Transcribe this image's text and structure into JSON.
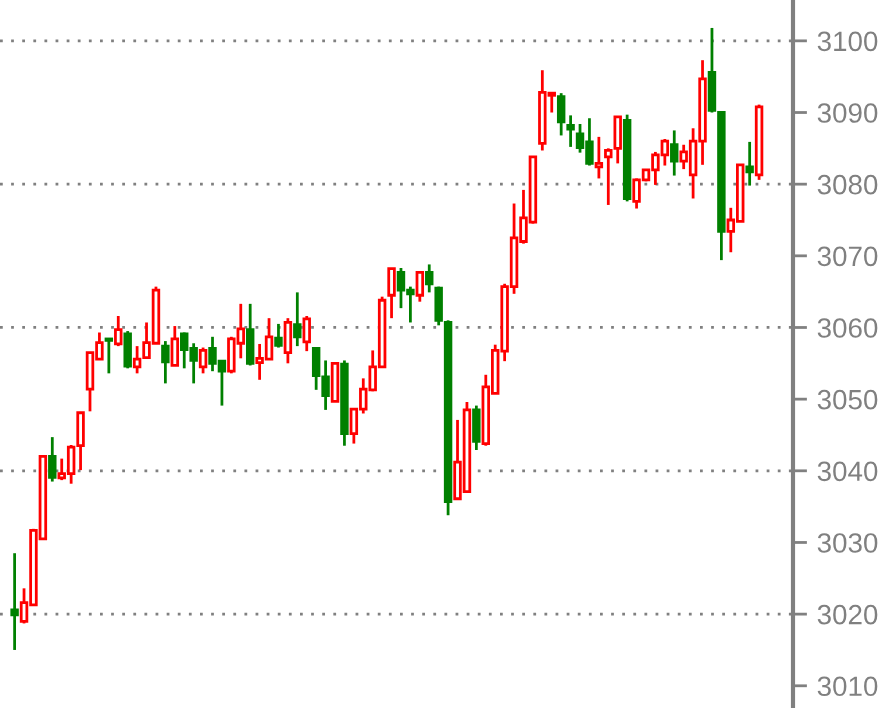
{
  "chart_data": {
    "type": "candlestick",
    "categories": [
      null,
      null,
      null,
      null,
      null,
      null,
      null,
      null,
      null,
      null,
      null,
      null,
      null,
      null,
      null,
      null,
      null,
      null,
      null,
      null,
      null,
      null,
      null,
      null,
      null,
      null,
      null,
      null,
      null,
      null,
      null,
      null,
      null,
      null,
      null,
      null,
      null,
      null,
      null,
      null,
      null,
      null,
      null,
      null,
      null,
      null,
      null,
      null,
      null,
      null,
      null,
      null,
      null,
      null,
      null,
      null,
      null,
      null,
      null,
      null,
      null,
      null,
      null,
      null,
      null,
      null,
      null,
      null,
      null,
      null,
      null,
      null,
      null,
      null,
      null,
      null,
      null,
      null,
      null,
      null
    ],
    "ohlc": [
      [
        3020.6,
        3028.5,
        3015.0,
        3019.9
      ],
      [
        3019.0,
        3023.6,
        3018.7,
        3021.6
      ],
      [
        3021.3,
        3031.9,
        3021.3,
        3031.7
      ],
      [
        3030.5,
        3042.0,
        3030.5,
        3042.0
      ],
      [
        3042.0,
        3044.7,
        3038.5,
        3039.1
      ],
      [
        3039.0,
        3041.7,
        3038.7,
        3039.6
      ],
      [
        3039.6,
        3043.6,
        3038.2,
        3043.3
      ],
      [
        3043.5,
        3048.1,
        3040.1,
        3048.1
      ],
      [
        3051.4,
        3056.5,
        3048.3,
        3056.5
      ],
      [
        3055.6,
        3059.3,
        3055.6,
        3057.9
      ],
      [
        3058.4,
        3058.4,
        3053.6,
        3058.2
      ],
      [
        3057.7,
        3061.6,
        3057.4,
        3059.7
      ],
      [
        3059.1,
        3059.5,
        3054.3,
        3054.6
      ],
      [
        3054.5,
        3057.4,
        3053.6,
        3055.6
      ],
      [
        3055.8,
        3060.7,
        3055.8,
        3057.9
      ],
      [
        3057.8,
        3065.7,
        3057.8,
        3065.2
      ],
      [
        3057.4,
        3058.1,
        3052.2,
        3055.2
      ],
      [
        3054.7,
        3060.2,
        3054.7,
        3058.4
      ],
      [
        3059.1,
        3059.3,
        3054.3,
        3056.9
      ],
      [
        3057.1,
        3057.8,
        3052.2,
        3055.4
      ],
      [
        3054.5,
        3057.2,
        3053.6,
        3056.8
      ],
      [
        3057.1,
        3058.7,
        3053.9,
        3055.0
      ],
      [
        3055.3,
        3055.3,
        3049.1,
        3053.9
      ],
      [
        3053.9,
        3058.7,
        3053.6,
        3058.4
      ],
      [
        3057.8,
        3063.3,
        3055.7,
        3059.8
      ],
      [
        3059.7,
        3063.3,
        3054.7,
        3055.0
      ],
      [
        3055.1,
        3057.7,
        3052.7,
        3055.7
      ],
      [
        3055.6,
        3061.3,
        3055.6,
        3058.7
      ],
      [
        3058.5,
        3060.5,
        3057.2,
        3057.5
      ],
      [
        3056.5,
        3061.3,
        3055.0,
        3060.7
      ],
      [
        3060.4,
        3064.9,
        3057.4,
        3058.7
      ],
      [
        3058.0,
        3061.6,
        3056.7,
        3061.2
      ],
      [
        3057.1,
        3057.1,
        3051.3,
        3053.3
      ],
      [
        3053.1,
        3055.4,
        3048.5,
        3050.5
      ],
      [
        3049.7,
        3055.0,
        3049.7,
        3055.0
      ],
      [
        3054.9,
        3055.4,
        3043.5,
        3045.2
      ],
      [
        3045.2,
        3048.6,
        3043.8,
        3048.6
      ],
      [
        3048.6,
        3052.9,
        3048.0,
        3051.4
      ],
      [
        3051.3,
        3056.8,
        3051.1,
        3054.5
      ],
      [
        3054.5,
        3064.3,
        3054.5,
        3063.8
      ],
      [
        3064.5,
        3068.2,
        3061.3,
        3068.2
      ],
      [
        3067.7,
        3068.3,
        3062.7,
        3065.2
      ],
      [
        3065.2,
        3065.7,
        3060.7,
        3064.7
      ],
      [
        3064.5,
        3067.7,
        3063.6,
        3067.7
      ],
      [
        3067.7,
        3068.8,
        3064.9,
        3066.1
      ],
      [
        3065.5,
        3065.7,
        3060.3,
        3061.0
      ],
      [
        3060.7,
        3061.0,
        3033.8,
        3035.7
      ],
      [
        3036.1,
        3047.1,
        3036.1,
        3041.2
      ],
      [
        3037.1,
        3049.6,
        3037.1,
        3048.5
      ],
      [
        3048.5,
        3049.1,
        3042.9,
        3044.1
      ],
      [
        3043.8,
        3053.4,
        3043.5,
        3051.7
      ],
      [
        3050.8,
        3057.6,
        3050.8,
        3056.8
      ],
      [
        3056.7,
        3066.1,
        3055.3,
        3065.7
      ],
      [
        3065.7,
        3077.3,
        3064.7,
        3072.5
      ],
      [
        3072.0,
        3079.2,
        3071.7,
        3075.3
      ],
      [
        3074.7,
        3083.8,
        3074.5,
        3083.8
      ],
      [
        3085.7,
        3095.9,
        3084.7,
        3092.8
      ],
      [
        3092.4,
        3092.8,
        3090.0,
        3092.7
      ],
      [
        3092.2,
        3092.7,
        3086.8,
        3088.7
      ],
      [
        3088.2,
        3089.6,
        3085.2,
        3087.7
      ],
      [
        3087.0,
        3088.4,
        3084.4,
        3085.1
      ],
      [
        3085.9,
        3089.2,
        3082.6,
        3082.9
      ],
      [
        3082.4,
        3086.6,
        3080.8,
        3082.9
      ],
      [
        3083.8,
        3085.0,
        3077.1,
        3084.7
      ],
      [
        3085.0,
        3089.4,
        3082.9,
        3089.4
      ],
      [
        3088.9,
        3089.7,
        3077.6,
        3078.0
      ],
      [
        3077.6,
        3080.8,
        3076.6,
        3080.6
      ],
      [
        3080.6,
        3082.1,
        3080.4,
        3082.0
      ],
      [
        3082.0,
        3084.5,
        3079.9,
        3084.1
      ],
      [
        3084.1,
        3086.3,
        3082.6,
        3086.0
      ],
      [
        3085.5,
        3087.5,
        3081.2,
        3083.2
      ],
      [
        3083.2,
        3085.5,
        3082.1,
        3084.5
      ],
      [
        3081.3,
        3087.8,
        3078.0,
        3086.0
      ],
      [
        3086.0,
        3097.3,
        3082.7,
        3094.7
      ],
      [
        3095.6,
        3101.8,
        3090.0,
        3090.3
      ],
      [
        3090.0,
        3090.0,
        3069.4,
        3073.4
      ],
      [
        3073.4,
        3076.7,
        3070.5,
        3075.0
      ],
      [
        3074.8,
        3082.7,
        3074.8,
        3082.7
      ],
      [
        3082.4,
        3085.9,
        3079.8,
        3081.7
      ],
      [
        3081.3,
        3091.1,
        3080.6,
        3090.8
      ]
    ],
    "colors": [
      "#008000",
      "#ff0000",
      "#ff0000",
      "#ff0000",
      "#008000",
      "#ff0000",
      "#ff0000",
      "#ff0000",
      "#ff0000",
      "#ff0000",
      "#008000",
      "#ff0000",
      "#008000",
      "#ff0000",
      "#ff0000",
      "#ff0000",
      "#008000",
      "#ff0000",
      "#008000",
      "#008000",
      "#ff0000",
      "#008000",
      "#008000",
      "#ff0000",
      "#ff0000",
      "#008000",
      "#ff0000",
      "#ff0000",
      "#008000",
      "#ff0000",
      "#008000",
      "#ff0000",
      "#008000",
      "#008000",
      "#ff0000",
      "#008000",
      "#ff0000",
      "#ff0000",
      "#ff0000",
      "#ff0000",
      "#ff0000",
      "#008000",
      "#008000",
      "#ff0000",
      "#008000",
      "#008000",
      "#008000",
      "#ff0000",
      "#ff0000",
      "#008000",
      "#ff0000",
      "#ff0000",
      "#ff0000",
      "#ff0000",
      "#ff0000",
      "#ff0000",
      "#ff0000",
      "#ff0000",
      "#008000",
      "#008000",
      "#008000",
      "#008000",
      "#ff0000",
      "#ff0000",
      "#ff0000",
      "#008000",
      "#ff0000",
      "#ff0000",
      "#ff0000",
      "#ff0000",
      "#008000",
      "#ff0000",
      "#ff0000",
      "#ff0000",
      "#008000",
      "#008000",
      "#ff0000",
      "#ff0000",
      "#008000",
      "#ff0000"
    ],
    "ylim": [
      3006.9,
      3105.7
    ],
    "yticks": [
      3010,
      3020,
      3030,
      3040,
      3050,
      3060,
      3070,
      3080,
      3090,
      3100
    ],
    "tick_labels": "y",
    "grid": false,
    "ref_lines": [
      {
        "axis": "y",
        "value": 3020,
        "color": "#808080",
        "line_style": "dotted"
      },
      {
        "axis": "y",
        "value": 3040,
        "color": "#808080",
        "line_style": "dotted"
      },
      {
        "axis": "y",
        "value": 3060,
        "color": "#808080",
        "line_style": "dotted"
      },
      {
        "axis": "y",
        "value": 3080,
        "color": "#808080",
        "line_style": "dotted"
      },
      {
        "axis": "y",
        "value": 3100,
        "color": "#808080",
        "line_style": "dotted"
      }
    ]
  }
}
